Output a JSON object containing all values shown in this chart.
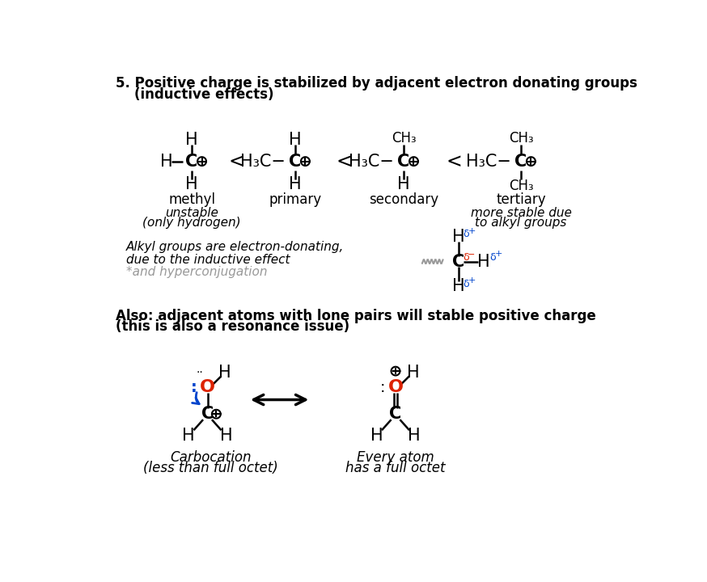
{
  "bg_color": "#ffffff",
  "text_color": "#000000",
  "red_color": "#dd2200",
  "blue_color": "#0044cc",
  "gray_color": "#999999",
  "title1": "5. Positive charge is stabilized by adjacent electron donating groups",
  "title2": "    (inductive effects)",
  "section2_title1": "Also: adjacent atoms with lone pairs will stable positive charge",
  "section2_title2": "(this is also a resonance issue)"
}
